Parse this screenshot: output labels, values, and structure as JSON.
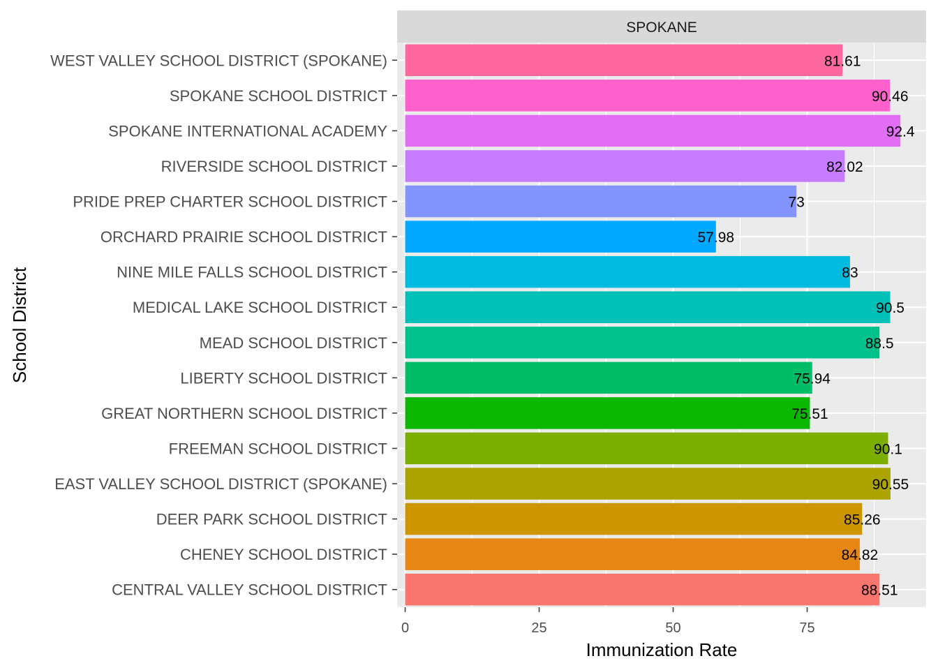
{
  "chart_data": {
    "type": "bar",
    "orientation": "horizontal",
    "facet": "SPOKANE",
    "xlabel": "Immunization Rate",
    "ylabel": "School District",
    "xlim": [
      -1.5,
      97.2
    ],
    "xticks": [
      0,
      25,
      50,
      75
    ],
    "grid": true,
    "legend": "none",
    "categories": [
      "WEST VALLEY SCHOOL DISTRICT (SPOKANE)",
      "SPOKANE SCHOOL DISTRICT",
      "SPOKANE INTERNATIONAL ACADEMY",
      "RIVERSIDE SCHOOL DISTRICT",
      "PRIDE PREP CHARTER SCHOOL DISTRICT",
      "ORCHARD PRAIRIE SCHOOL DISTRICT",
      "NINE MILE FALLS SCHOOL DISTRICT",
      "MEDICAL LAKE SCHOOL DISTRICT",
      "MEAD SCHOOL DISTRICT",
      "LIBERTY SCHOOL DISTRICT",
      "GREAT NORTHERN SCHOOL DISTRICT",
      "FREEMAN SCHOOL DISTRICT",
      "EAST VALLEY SCHOOL DISTRICT (SPOKANE)",
      "DEER PARK SCHOOL DISTRICT",
      "CHENEY SCHOOL DISTRICT",
      "CENTRAL VALLEY SCHOOL DISTRICT"
    ],
    "values": [
      81.61,
      90.46,
      92.4,
      82.02,
      73,
      57.98,
      83,
      90.5,
      88.5,
      75.94,
      75.51,
      90.1,
      90.55,
      85.26,
      84.82,
      88.51
    ],
    "value_labels": [
      "81.61",
      "90.46",
      "92.4",
      "82.02",
      "73",
      "57.98",
      "83",
      "90.5",
      "88.5",
      "75.94",
      "75.51",
      "90.1",
      "90.55",
      "85.26",
      "84.82",
      "88.51"
    ],
    "colors": [
      "#FF689F",
      "#FF61CC",
      "#E36EF6",
      "#C77CFF",
      "#8494FF",
      "#00A9FF",
      "#00BAE0",
      "#00C0B8",
      "#00C08B",
      "#00BE67",
      "#0CB702",
      "#7CAE00",
      "#ABA300",
      "#CD9600",
      "#E68613",
      "#F8766D"
    ],
    "colors_meaning": "bar fill per category, top to bottom"
  }
}
